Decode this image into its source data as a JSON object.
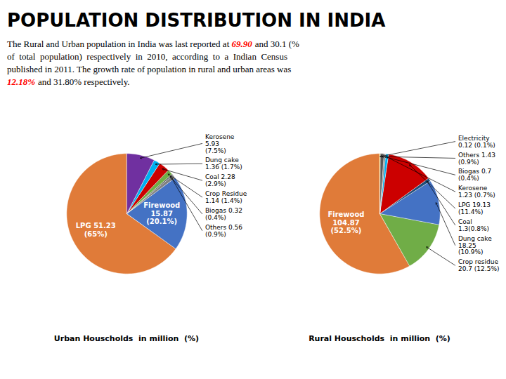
{
  "title": "POPULATION DISTRIBUTION IN INDIA",
  "annotations": [
    [
      {
        "text": "The Rural and Urban population in India was last reported at "
      },
      {
        "text": "69.90",
        "color": "red"
      },
      {
        "text": "and 30.1 (%"
      }
    ],
    [
      {
        "text": "of  total  population)  respectively  in  2010,  according  to  a  Indian  Census"
      }
    ],
    [
      {
        "text": "published in 2011. The growth rate of population in rural and urban areas was"
      }
    ],
    [
      {
        "text": "12.18%",
        "color": "red"
      },
      {
        "text": "and 31.80% respectively."
      }
    ]
  ],
  "chart_data": [
    {
      "type": "pie",
      "title": "Urban Houscholds  in million  (%)",
      "categories": [
        "LPG",
        "Firewood",
        "Others",
        "Biogas",
        "Crop Residue",
        "Coal",
        "Dung cake",
        "Kerosene"
      ],
      "values": [
        65.0,
        20.1,
        0.9,
        0.4,
        1.4,
        2.9,
        1.7,
        7.5
      ],
      "colors": [
        "#E07B39",
        "#4472C4",
        "#808080",
        "#595959",
        "#70AD47",
        "#CC0000",
        "#00B0F0",
        "#7030A0"
      ],
      "data_labels": true,
      "value_labels": [
        "LPG 51.23\n(65%)",
        "Firewood\n15.87\n(20.1%)",
        "Others 0.56\n(0.9%)",
        "Biogas 0.32\n(0.4%)",
        "Crop Residue\n1.14 (1.4%)",
        "Coal 2.28\n(2.9%)",
        "Dung cake\n1.36 (1.7%)",
        "Kerosene\n5.93\n(7.5%)"
      ]
    },
    {
      "type": "pie",
      "title": "Rural Houscholds  in million  (%)",
      "categories": [
        "Firewood",
        "Crop residue",
        "Dung cake",
        "Coal",
        "LPG",
        "Kerosene",
        "Biogas",
        "Others",
        "Electricity"
      ],
      "values": [
        52.5,
        12.5,
        10.9,
        0.8,
        11.4,
        0.7,
        0.4,
        0.9,
        0.1
      ],
      "colors": [
        "#E07B39",
        "#70AD47",
        "#4472C4",
        "#1F4E79",
        "#CC0000",
        "#00B0F0",
        "#808080",
        "#595959",
        "#FFFF00"
      ],
      "data_labels": true,
      "value_labels": [
        "Firewood\n104.87\n(52.5%)",
        "Crop residue\n20.7 (12.5%)",
        "Dung cake\n18.25\n(10.9%)",
        "Coal\n1.3(0.8%)",
        "LPG 19.13\n(11.4%)",
        "Kerosene\n1.23 (0.7%)",
        "Biogas 0.7\n(0.4%)",
        "Others 1.43\n(0.9%)",
        "Electricity\n0.12 (0.1%)"
      ]
    }
  ]
}
